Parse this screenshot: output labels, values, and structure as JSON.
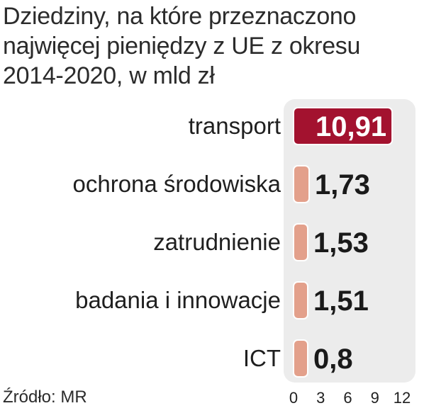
{
  "chart_data": {
    "type": "bar",
    "orientation": "horizontal",
    "title_lines": [
      "Dziedziny, na które przeznaczono",
      "najwięcej pieniędzy z UE z okresu",
      "2014-2020, w mld zł"
    ],
    "categories": [
      "transport",
      "ochrona środowiska",
      "zatrudnienie",
      "badania i innowacje",
      "ICT"
    ],
    "values": [
      10.91,
      1.73,
      1.53,
      1.51,
      0.8
    ],
    "value_labels": [
      "10,91",
      "1,73",
      "1,53",
      "1,51",
      "0,8"
    ],
    "x_ticks": [
      "0",
      "3",
      "6",
      "9",
      "12"
    ],
    "xlim": [
      0,
      12
    ],
    "grid": false,
    "highlight_index": 0,
    "colors": {
      "highlight": "#a3122f",
      "bar": "#e3a08b",
      "panel": "#ececec",
      "bar_outline": "#ffffff"
    }
  },
  "source": "Źródło: MR"
}
